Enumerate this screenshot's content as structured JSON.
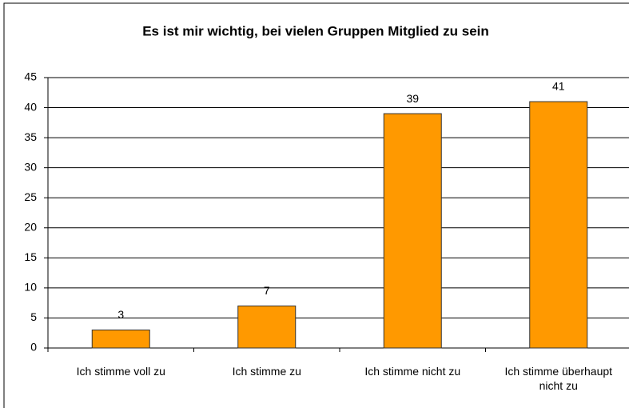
{
  "chart_data": {
    "type": "bar",
    "title": "Es ist mir wichtig, bei vielen Gruppen Mitglied zu sein",
    "categories": [
      "Ich stimme voll zu",
      "Ich stimme zu",
      "Ich stimme nicht zu",
      "Ich stimme überhaupt nicht zu"
    ],
    "values": [
      3,
      7,
      39,
      41
    ],
    "color": "#ff9900",
    "ylim": [
      0,
      45
    ],
    "yticks": [
      0,
      5,
      10,
      15,
      20,
      25,
      30,
      35,
      40,
      45
    ],
    "grid": true
  }
}
